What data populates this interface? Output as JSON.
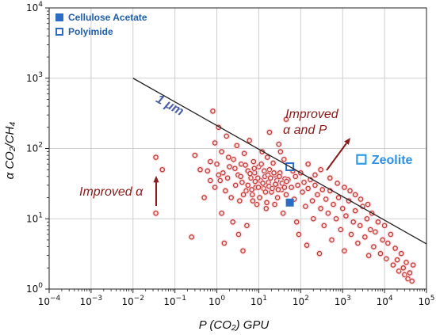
{
  "chart_data": {
    "type": "scatter",
    "title": "",
    "xlabel": "P (CO₂) GPU",
    "ylabel": "α CO₂/CH₄",
    "x_scale": "log",
    "y_scale": "log",
    "xlim": [
      0.0001,
      100000
    ],
    "ylim": [
      1,
      10000
    ],
    "grid": true,
    "x_ticks": [
      {
        "label_base": "10",
        "label_exp": "−4"
      },
      {
        "label_base": "10",
        "label_exp": "−3"
      },
      {
        "label_base": "10",
        "label_exp": "−2"
      },
      {
        "label_base": "10",
        "label_exp": "−1"
      },
      {
        "label_base": "10",
        "label_exp": "0"
      },
      {
        "label_base": "10",
        "label_exp": "1"
      },
      {
        "label_base": "10",
        "label_exp": "2"
      },
      {
        "label_base": "10",
        "label_exp": "3"
      },
      {
        "label_base": "10",
        "label_exp": "4"
      },
      {
        "label_base": "10",
        "label_exp": "5"
      }
    ],
    "y_ticks": [
      {
        "label_base": "10",
        "label_exp": "0"
      },
      {
        "label_base": "10",
        "label_exp": "1"
      },
      {
        "label_base": "10",
        "label_exp": "2"
      },
      {
        "label_base": "10",
        "label_exp": "3"
      },
      {
        "label_base": "10",
        "label_exp": "4"
      }
    ],
    "legend": {
      "placement": "top-left",
      "entries": [
        {
          "label": "Cellulose Acetate",
          "marker": "filled-square",
          "color": "#2b6cc4"
        },
        {
          "label": "Polyimide",
          "marker": "open-square",
          "color": "#2b6cc4"
        }
      ]
    },
    "upper_bound_line": {
      "label": "1 μm",
      "points": [
        [
          0.01,
          1000
        ],
        [
          100000,
          4.4
        ]
      ],
      "color": "#222222"
    },
    "series": [
      {
        "name": "Cellulose Acetate",
        "marker": "filled-square",
        "color": "#2b6cc4",
        "points": [
          [
            55,
            17
          ]
        ]
      },
      {
        "name": "Polyimide",
        "marker": "open-square",
        "color": "#2b6cc4",
        "points": [
          [
            55,
            55
          ]
        ]
      },
      {
        "name": "Zeolite",
        "marker": "open-square",
        "color": "#2f9be8",
        "points": [
          [
            2800,
            70
          ]
        ]
      },
      {
        "marker": "circle",
        "color": "#c0392b",
        "points": [
          [
            0.035,
            75
          ],
          [
            0.05,
            50
          ],
          [
            0.035,
            12
          ],
          [
            0.3,
            80
          ],
          [
            0.25,
            5.5
          ],
          [
            0.5,
            20
          ],
          [
            0.6,
            48
          ],
          [
            0.7,
            35
          ],
          [
            0.8,
            340
          ],
          [
            0.9,
            28
          ],
          [
            1.0,
            60
          ],
          [
            1.1,
            200
          ],
          [
            1.2,
            35
          ],
          [
            1.3,
            12
          ],
          [
            1.4,
            45
          ],
          [
            1.5,
            4.5
          ],
          [
            1.6,
            25
          ],
          [
            1.7,
            150
          ],
          [
            1.8,
            38
          ],
          [
            2.0,
            55
          ],
          [
            2.2,
            20
          ],
          [
            2.5,
            70
          ],
          [
            2.8,
            30
          ],
          [
            3.0,
            110
          ],
          [
            3.2,
            42
          ],
          [
            3.5,
            18
          ],
          [
            3.8,
            60
          ],
          [
            4.0,
            33
          ],
          [
            4.2,
            3.5
          ],
          [
            4.5,
            85
          ],
          [
            5.0,
            25
          ],
          [
            5.5,
            48
          ],
          [
            6.0,
            130
          ],
          [
            6.5,
            38
          ],
          [
            7.0,
            22
          ],
          [
            7.5,
            65
          ],
          [
            8.0,
            45
          ],
          [
            8.5,
            28
          ],
          [
            9.0,
            16
          ],
          [
            10,
            55
          ],
          [
            11,
            35
          ],
          [
            12,
            90
          ],
          [
            13,
            27
          ],
          [
            14,
            40
          ],
          [
            15,
            14
          ],
          [
            16,
            75
          ],
          [
            17,
            33
          ],
          [
            18,
            50
          ],
          [
            20,
            24
          ],
          [
            22,
            62
          ],
          [
            24,
            42
          ],
          [
            26,
            30
          ],
          [
            28,
            20
          ],
          [
            30,
            115
          ],
          [
            32,
            45
          ],
          [
            35,
            26
          ],
          [
            38,
            12
          ],
          [
            40,
            70
          ],
          [
            42,
            37
          ],
          [
            45,
            22
          ],
          [
            50,
            36
          ],
          [
            60,
            28
          ],
          [
            65,
            48
          ],
          [
            70,
            19
          ],
          [
            75,
            40
          ],
          [
            80,
            9
          ],
          [
            85,
            30
          ],
          [
            90,
            6
          ],
          [
            100,
            45
          ],
          [
            110,
            24
          ],
          [
            120,
            33
          ],
          [
            130,
            15
          ],
          [
            140,
            4.2
          ],
          [
            150,
            27
          ],
          [
            170,
            36
          ],
          [
            190,
            18
          ],
          [
            200,
            10
          ],
          [
            220,
            30
          ],
          [
            250,
            22
          ],
          [
            280,
            3.2
          ],
          [
            300,
            14
          ],
          [
            330,
            26
          ],
          [
            360,
            8
          ],
          [
            400,
            19
          ],
          [
            450,
            12
          ],
          [
            500,
            25
          ],
          [
            550,
            5
          ],
          [
            600,
            16
          ],
          [
            700,
            10
          ],
          [
            800,
            20
          ],
          [
            900,
            7
          ],
          [
            1000,
            14
          ],
          [
            1100,
            3.5
          ],
          [
            1200,
            11
          ],
          [
            1400,
            18
          ],
          [
            1600,
            6
          ],
          [
            1800,
            9
          ],
          [
            2000,
            13
          ],
          [
            2300,
            4.5
          ],
          [
            2600,
            8
          ],
          [
            3000,
            15
          ],
          [
            3400,
            5.5
          ],
          [
            3800,
            10
          ],
          [
            4200,
            3
          ],
          [
            4600,
            7
          ],
          [
            5000,
            12
          ],
          [
            5500,
            4
          ],
          [
            6000,
            6.5
          ],
          [
            7000,
            9
          ],
          [
            8000,
            3.2
          ],
          [
            9000,
            5
          ],
          [
            10000,
            8
          ],
          [
            11000,
            2.7
          ],
          [
            12000,
            4.5
          ],
          [
            14000,
            6
          ],
          [
            16000,
            2.2
          ],
          [
            18000,
            3.8
          ],
          [
            20000,
            2.6
          ],
          [
            22000,
            1.8
          ],
          [
            25000,
            3.2
          ],
          [
            28000,
            2.0
          ],
          [
            30000,
            1.6
          ],
          [
            33000,
            2.4
          ],
          [
            36000,
            1.4
          ],
          [
            40000,
            1.7
          ],
          [
            45000,
            1.3
          ],
          [
            48000,
            2.2
          ],
          [
            2.4,
            9
          ],
          [
            3.3,
            6
          ],
          [
            5.2,
            8
          ],
          [
            0.4,
            50
          ],
          [
            0.7,
            65
          ],
          [
            1.1,
            42
          ],
          [
            1.9,
            75
          ],
          [
            2.7,
            52
          ],
          [
            3.7,
            40
          ],
          [
            4.8,
            58
          ],
          [
            6.2,
            44
          ],
          [
            7.8,
            52
          ],
          [
            9.5,
            38
          ],
          [
            11.5,
            60
          ],
          [
            13.5,
            48
          ],
          [
            16.5,
            42
          ],
          [
            19,
            38
          ],
          [
            23,
            45
          ],
          [
            27,
            35
          ],
          [
            31,
            40
          ],
          [
            36,
            32
          ],
          [
            41,
            28
          ],
          [
            46,
            34
          ],
          [
            5.5,
            30
          ],
          [
            6.8,
            26
          ],
          [
            8.2,
            34
          ],
          [
            9.8,
            28
          ],
          [
            12.5,
            32
          ],
          [
            14.5,
            24
          ],
          [
            17.5,
            29
          ],
          [
            21,
            27
          ],
          [
            25,
            31
          ],
          [
            29,
            26
          ],
          [
            4.3,
            22
          ],
          [
            7.2,
            18
          ],
          [
            10.5,
            20
          ],
          [
            15.5,
            17
          ],
          [
            24,
            16
          ],
          [
            1.3,
            90
          ],
          [
            0.9,
            120
          ],
          [
            18,
            170
          ],
          [
            45,
            260
          ],
          [
            33,
            90
          ],
          [
            150,
            60
          ],
          [
            220,
            42
          ],
          [
            300,
            50
          ],
          [
            500,
            38
          ],
          [
            750,
            32
          ],
          [
            1100,
            28
          ],
          [
            1500,
            25
          ],
          [
            2000,
            22
          ],
          [
            2700,
            19
          ],
          [
            4000,
            16
          ]
        ]
      }
    ],
    "annotations": [
      {
        "text": "1 μm",
        "style": "line-label"
      },
      {
        "text": "Improved α",
        "style": "arrow-label"
      },
      {
        "text_line1": "Improved",
        "text_line2": "α and P",
        "style": "arrow-label"
      },
      {
        "text": "Zeolite",
        "style": "point-label"
      }
    ]
  }
}
